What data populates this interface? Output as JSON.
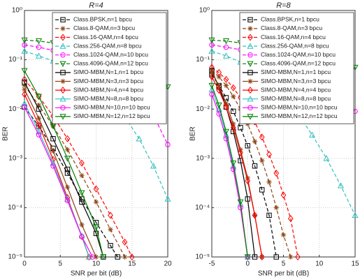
{
  "chart_data": [
    {
      "type": "line",
      "title": "R=4",
      "xlabel": "SNR per bit (dB)",
      "ylabel": "BER",
      "log_y": true,
      "grid": true,
      "legend": "upper right",
      "xlim": [
        0,
        20
      ],
      "xticks": [
        0,
        5,
        10,
        15,
        20
      ],
      "ylim": [
        1e-05,
        1
      ],
      "yticks": [
        {
          "value": 1e-05,
          "label": "10⁻⁵"
        },
        {
          "value": 0.0001,
          "label": "10⁻⁴"
        },
        {
          "value": 0.001,
          "label": "10⁻³"
        },
        {
          "value": 0.01,
          "label": "10⁻²"
        },
        {
          "value": 0.1,
          "label": "10⁻¹"
        },
        {
          "value": 1,
          "label": "10⁰"
        }
      ],
      "series": [
        {
          "name": "Class.BPSK,n=1 bpcu",
          "color": "#000000",
          "dashed": true,
          "marker": "s",
          "x": [
            0,
            2,
            4,
            6,
            8,
            10,
            12,
            13
          ],
          "values": [
            0.011,
            0.0045,
            0.0016,
            0.0005,
            0.00015,
            5e-05,
            1.7e-05,
            1e-05
          ]
        },
        {
          "name": "Class.8-QAM,n=3 bpcu",
          "color": "#8b4513",
          "dashed": true,
          "marker": "*",
          "x": [
            0,
            2,
            4,
            6,
            8,
            10,
            12,
            14
          ],
          "values": [
            0.03,
            0.012,
            0.0045,
            0.0015,
            0.00045,
            0.00013,
            3.6e-05,
            1e-05
          ]
        },
        {
          "name": "Class.16-QAM,n=4 bpcu",
          "color": "#ff0000",
          "dashed": true,
          "marker": "d",
          "x": [
            0,
            2,
            4,
            6,
            8,
            10,
            12,
            14,
            15
          ],
          "values": [
            0.04,
            0.018,
            0.0072,
            0.0025,
            0.0008,
            0.00024,
            7e-05,
            2e-05,
            1e-05
          ]
        },
        {
          "name": "Class.256-QAM,n=8 bpcu",
          "color": "#33c0c0",
          "dashed": true,
          "marker": "^",
          "x": [
            0,
            2,
            4,
            6,
            8,
            10,
            12,
            14,
            16,
            18,
            20
          ],
          "values": [
            0.15,
            0.12,
            0.095,
            0.07,
            0.048,
            0.03,
            0.016,
            0.007,
            0.0025,
            0.0007,
            0.00015
          ]
        },
        {
          "name": "Class.1024-QAM,n=10 bpcu",
          "color": "#ff00ff",
          "dashed": true,
          "marker": "o",
          "x": [
            0,
            2,
            4,
            6,
            8,
            10,
            12,
            14,
            16,
            18,
            20
          ],
          "values": [
            0.2,
            0.18,
            0.155,
            0.13,
            0.105,
            0.08,
            0.055,
            0.035,
            0.018,
            0.0075,
            0.0019
          ]
        },
        {
          "name": "Class.4096-QAM,n=12 bpcu",
          "color": "#008000",
          "dashed": true,
          "marker": "v",
          "x": [
            0,
            2,
            4,
            6,
            8,
            10,
            12,
            14,
            16,
            18,
            20
          ],
          "values": [
            0.25,
            0.24,
            0.22,
            0.2,
            0.18,
            0.16,
            0.14,
            0.11,
            0.085,
            0.055,
            0.028
          ]
        },
        {
          "name": "SIMO-MBM,N=1,n=1 bpcu",
          "color": "#000000",
          "dashed": false,
          "marker": "s",
          "x": [
            0,
            2,
            4,
            6,
            8,
            10,
            11
          ],
          "values": [
            0.035,
            0.01,
            0.0025,
            0.0006,
            0.00013,
            3e-05,
            1e-05
          ]
        },
        {
          "name": "SIMO-MBM,N=3,n=3 bpcu",
          "color": "#8b4513",
          "dashed": false,
          "marker": "*",
          "x": [
            0,
            2,
            4,
            6,
            8,
            10
          ],
          "values": [
            0.025,
            0.0065,
            0.0014,
            0.00026,
            4.5e-05,
            1e-05
          ]
        },
        {
          "name": "SIMO-MBM,N=4,n=4 bpcu",
          "color": "#ff0000",
          "dashed": false,
          "marker": "d",
          "x": [
            0,
            2,
            4,
            6,
            8,
            9
          ],
          "values": [
            0.02,
            0.0048,
            0.00095,
            0.00016,
            2.6e-05,
            1e-05
          ]
        },
        {
          "name": "SIMO-MBM,N=8,n=8 bpcu",
          "color": "#33c0c0",
          "dashed": false,
          "marker": "^",
          "x": [
            0,
            2,
            4,
            6,
            8,
            9
          ],
          "values": [
            0.013,
            0.0035,
            0.0008,
            0.00015,
            2.7e-05,
            1e-05
          ]
        },
        {
          "name": "SIMO-MBM,N=10,n=10 bpcu",
          "color": "#ff00ff",
          "dashed": false,
          "marker": "o",
          "x": [
            0,
            2,
            4,
            6,
            8,
            9.5
          ],
          "values": [
            0.011,
            0.003,
            0.0007,
            0.00014,
            2.6e-05,
            1e-05
          ]
        },
        {
          "name": "SIMO-MBM,N=12,n=12 bpcu",
          "color": "#008000",
          "dashed": false,
          "marker": "v",
          "x": [
            0,
            2,
            4,
            6,
            8,
            10,
            11
          ],
          "values": [
            0.06,
            0.018,
            0.0045,
            0.001,
            0.0002,
            4e-05,
            1e-05
          ]
        }
      ]
    },
    {
      "type": "line",
      "title": "R=8",
      "xlabel": "SNR per bit (dB)",
      "ylabel": "BER",
      "log_y": true,
      "grid": true,
      "legend": "upper right",
      "xlim": [
        -5,
        15
      ],
      "xticks": [
        -5,
        0,
        5,
        10,
        15
      ],
      "ylim": [
        1e-05,
        1
      ],
      "yticks": [
        {
          "value": 1e-05,
          "label": "10⁻⁵"
        },
        {
          "value": 0.0001,
          "label": "10⁻⁴"
        },
        {
          "value": 0.001,
          "label": "10⁻³"
        },
        {
          "value": 0.01,
          "label": "10⁻²"
        },
        {
          "value": 0.1,
          "label": "10⁻¹"
        },
        {
          "value": 1,
          "label": "10⁰"
        }
      ],
      "series": [
        {
          "name": "Class.BPSK,n=1 bpcu",
          "color": "#000000",
          "dashed": true,
          "marker": "s",
          "x": [
            -5,
            -4,
            -3,
            -2,
            -1,
            0,
            1,
            2,
            3,
            4
          ],
          "values": [
            0.05,
            0.03,
            0.017,
            0.009,
            0.0042,
            0.0018,
            0.0007,
            0.00023,
            7e-05,
            1e-05
          ]
        },
        {
          "name": "Class.8-QAM,n=3 bpcu",
          "color": "#8b4513",
          "dashed": true,
          "marker": "*",
          "x": [
            -5,
            -4,
            -3,
            -2,
            -1,
            0,
            1,
            2,
            3,
            4,
            5,
            6
          ],
          "values": [
            0.06,
            0.045,
            0.03,
            0.018,
            0.01,
            0.005,
            0.0022,
            0.0009,
            0.00033,
            0.0001,
            2.8e-05,
            1e-05
          ]
        },
        {
          "name": "Class.16-QAM,n=4 bpcu",
          "color": "#ff0000",
          "dashed": true,
          "marker": "d",
          "x": [
            -5,
            -4,
            -3,
            -2,
            -1,
            0,
            1,
            2,
            3,
            4,
            5,
            6,
            7
          ],
          "values": [
            0.07,
            0.055,
            0.04,
            0.027,
            0.017,
            0.01,
            0.0055,
            0.0027,
            0.0012,
            0.0005,
            0.00018,
            6e-05,
            1e-05
          ]
        },
        {
          "name": "Class.256-QAM,n=8 bpcu",
          "color": "#33c0c0",
          "dashed": true,
          "marker": "^",
          "x": [
            -5,
            -3,
            -1,
            1,
            3,
            5,
            7,
            9,
            11,
            13,
            15
          ],
          "values": [
            0.15,
            0.12,
            0.09,
            0.06,
            0.035,
            0.018,
            0.008,
            0.003,
            0.001,
            0.00028,
            7e-05
          ]
        },
        {
          "name": "Class.1024-QAM,n=10 bpcu",
          "color": "#ff00ff",
          "dashed": true,
          "marker": "o",
          "x": [
            -5,
            -3,
            -1,
            1,
            3,
            5,
            7,
            9,
            11,
            13,
            15
          ],
          "values": [
            0.2,
            0.18,
            0.16,
            0.13,
            0.11,
            0.085,
            0.06,
            0.04,
            0.025,
            0.016,
            0.009
          ]
        },
        {
          "name": "Class.4096-QAM,n=12 bpcu",
          "color": "#008000",
          "dashed": true,
          "marker": "v",
          "x": [
            -5,
            -3,
            -1,
            1,
            3,
            5,
            7,
            9,
            11,
            13,
            15
          ],
          "values": [
            0.25,
            0.24,
            0.22,
            0.2,
            0.19,
            0.17,
            0.15,
            0.13,
            0.11,
            0.09,
            0.07
          ]
        },
        {
          "name": "SIMO-MBM,N=1,n=1 bpcu",
          "color": "#000000",
          "dashed": false,
          "marker": "s",
          "x": [
            -5,
            -4,
            -3,
            -2,
            -1,
            0,
            1
          ],
          "values": [
            0.06,
            0.028,
            0.011,
            0.0035,
            0.0009,
            0.00015,
            1e-05
          ]
        },
        {
          "name": "SIMO-MBM,N=3,n=3 bpcu",
          "color": "#8b4513",
          "dashed": false,
          "marker": "*",
          "x": [
            -5,
            -4,
            -3,
            -2,
            -1,
            0,
            1,
            2
          ],
          "values": [
            0.055,
            0.03,
            0.013,
            0.005,
            0.0015,
            0.0004,
            7e-05,
            1e-05
          ]
        },
        {
          "name": "SIMO-MBM,N=4,n=4 bpcu",
          "color": "#ff0000",
          "dashed": false,
          "marker": "d",
          "x": [
            -5,
            -4,
            -3,
            -2,
            -1,
            0,
            1,
            2
          ],
          "values": [
            0.045,
            0.024,
            0.011,
            0.0042,
            0.0013,
            0.00035,
            7e-05,
            1e-05
          ]
        },
        {
          "name": "SIMO-MBM,N=8,n=8 bpcu",
          "color": "#33c0c0",
          "dashed": false,
          "marker": "^",
          "x": [
            -5,
            -4,
            -3,
            -2,
            -1,
            0
          ],
          "values": [
            0.025,
            0.01,
            0.003,
            0.0007,
            0.00012,
            1e-05
          ]
        },
        {
          "name": "SIMO-MBM,N=10,n=10 bpcu",
          "color": "#ff00ff",
          "dashed": false,
          "marker": "o",
          "x": [
            -5,
            -4,
            -3,
            -2,
            -1,
            0
          ],
          "values": [
            0.02,
            0.008,
            0.0025,
            0.0006,
            0.0001,
            1e-05
          ]
        },
        {
          "name": "SIMO-MBM,N=12,n=12 bpcu",
          "color": "#008000",
          "dashed": false,
          "marker": "v",
          "x": [
            -5,
            -4,
            -3,
            -2,
            -1,
            0
          ],
          "values": [
            0.03,
            0.012,
            0.0035,
            0.0008,
            0.00013,
            1e-05
          ]
        }
      ]
    }
  ]
}
